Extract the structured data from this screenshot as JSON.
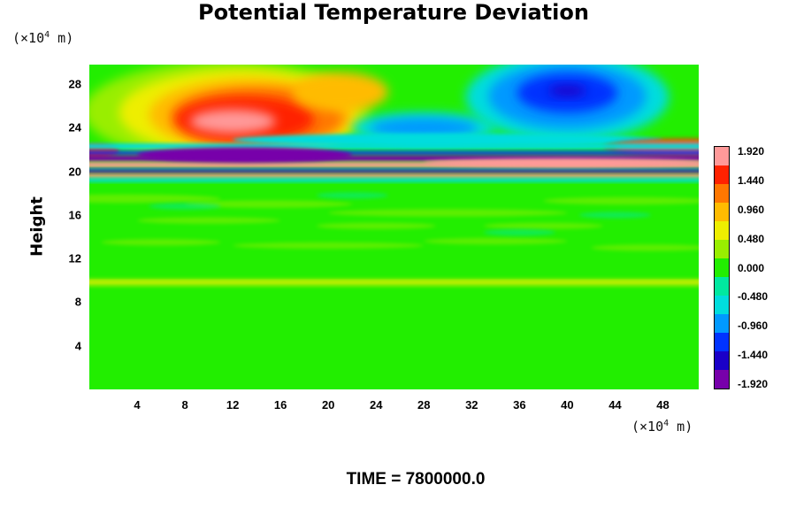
{
  "chart_data": {
    "type": "heatmap",
    "title": "Potential Temperature Deviation",
    "ylabel": "Height",
    "xunit_prefix": "(×10",
    "xunit_exp": "4",
    "xunit_suffix": " m)",
    "yunit_prefix": "(×10",
    "yunit_exp": "4",
    "yunit_suffix": " m)",
    "x_ticks": [
      "4",
      "8",
      "12",
      "16",
      "20",
      "24",
      "28",
      "32",
      "36",
      "40",
      "44",
      "48"
    ],
    "y_ticks": [
      "4",
      "8",
      "12",
      "16",
      "20",
      "24",
      "28"
    ],
    "xlim": [
      0,
      51
    ],
    "ylim": [
      0,
      29.8
    ],
    "colorbar": {
      "labels": [
        "1.920",
        "1.440",
        "0.960",
        "0.480",
        "0.000",
        "-0.480",
        "-0.960",
        "-1.440",
        "-1.920"
      ],
      "range": [
        -2.0,
        2.0
      ],
      "colors": [
        "#7700aa",
        "#1a00c8",
        "#0033ff",
        "#0099ff",
        "#00dddd",
        "#00e8a0",
        "#22ee00",
        "#99ee00",
        "#eeee00",
        "#ffbb00",
        "#ff7700",
        "#ff2200",
        "#ff9999"
      ]
    },
    "features": [
      {
        "name": "warm anomaly (upper left)",
        "x": [
          4,
          22
        ],
        "y": [
          22.5,
          28
        ],
        "peak": 1.92
      },
      {
        "name": "cold anomaly (upper right)",
        "x": [
          33,
          47
        ],
        "y": [
          24,
          29.8
        ],
        "peak": -1.6
      },
      {
        "name": "cold anomaly (center)",
        "x": [
          22,
          33
        ],
        "y": [
          22.8,
          25.2
        ],
        "peak": -1.2
      },
      {
        "name": "alternating bands",
        "x": [
          0,
          51
        ],
        "y": [
          19,
          22.5
        ],
        "range": [
          -1.92,
          1.92
        ]
      },
      {
        "name": "weak layer",
        "x": [
          0,
          51
        ],
        "y": [
          9.5,
          10.2
        ],
        "peak": 0.5
      }
    ],
    "grid": false
  },
  "footer": {
    "time_text": "TIME = 7800000.0"
  }
}
